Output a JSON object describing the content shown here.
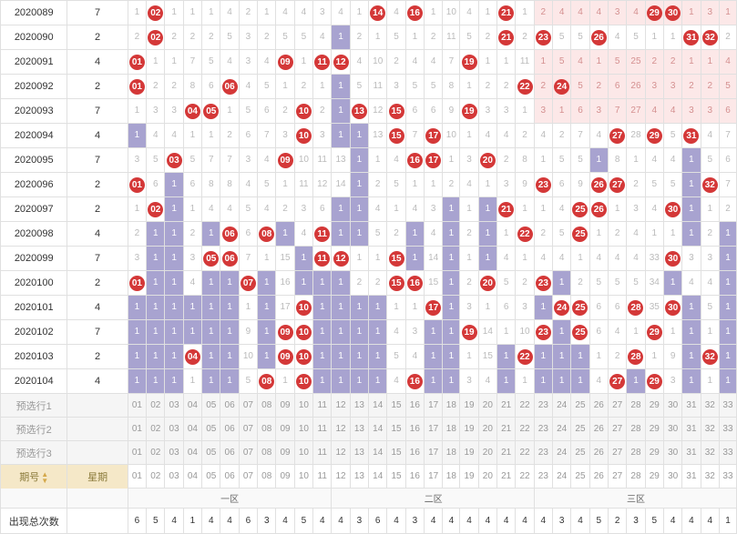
{
  "columns": 33,
  "zones": [
    {
      "label": "一区",
      "start": 1,
      "end": 11
    },
    {
      "label": "二区",
      "start": 12,
      "end": 22
    },
    {
      "label": "三区",
      "start": 23,
      "end": 33
    }
  ],
  "zone3_start": 23,
  "zone3_end": 33,
  "issue_header": "期号",
  "day_header": "星期",
  "count_label": "出现总次数",
  "pred_labels": [
    "预选行1",
    "预选行2",
    "预选行3"
  ],
  "counts": [
    6,
    5,
    4,
    1,
    4,
    4,
    6,
    3,
    4,
    5,
    4,
    4,
    3,
    6,
    4,
    3,
    4,
    4,
    4,
    4,
    4,
    4,
    4,
    3,
    4,
    5,
    2,
    3,
    5,
    4,
    4,
    4,
    1
  ],
  "rows": [
    {
      "issue": "2020089",
      "day": "7",
      "balls": [
        2,
        14,
        16,
        21,
        29,
        30
      ],
      "miss": {
        "1": 1,
        "3": 1,
        "4": 1,
        "5": 1,
        "6": 4,
        "7": 2,
        "8": 1,
        "9": 4,
        "10": 4,
        "11": 3,
        "12": 4,
        "13": 1,
        "15": 4,
        "17": 1,
        "18": 10,
        "19": 4,
        "20": 1,
        "22": 1,
        "23": 2,
        "24": 4,
        "25": 4,
        "26": 4,
        "27": 3,
        "28": 4,
        "31": 1,
        "32": 3,
        "33": 1
      },
      "trail": [],
      "z3": true
    },
    {
      "issue": "2020090",
      "day": "2",
      "balls": [
        2,
        21,
        23,
        26,
        31,
        32
      ],
      "miss": {
        "1": 2,
        "3": 2,
        "4": 2,
        "5": 2,
        "6": 5,
        "7": 3,
        "8": 2,
        "9": 5,
        "10": 5,
        "11": 4,
        "13": 2,
        "14": 1,
        "15": 5,
        "16": 1,
        "17": 2,
        "18": 11,
        "19": 5,
        "20": 2,
        "22": 2,
        "24": 5,
        "25": 5,
        "27": 4,
        "28": 5,
        "29": 1,
        "30": 1,
        "33": 2
      },
      "trail": [
        12
      ],
      "z3": false
    },
    {
      "issue": "2020091",
      "day": "4",
      "balls": [
        1,
        9,
        11,
        12,
        19
      ],
      "miss": {
        "2": 1,
        "3": 1,
        "4": 7,
        "5": 5,
        "6": 4,
        "7": 3,
        "8": 4,
        "10": 1,
        "13": 4,
        "14": 10,
        "15": 2,
        "16": 4,
        "17": 4,
        "18": 7,
        "20": 1,
        "21": 1,
        "22": 11
      },
      "trail": [],
      "z3": true,
      "z3_miss": {
        "23": 1,
        "24": 5,
        "25": 4,
        "26": 1,
        "27": 5,
        "28": 25,
        "29": 2,
        "30": 2,
        "31": 1,
        "32": 1,
        "33": 4
      }
    },
    {
      "issue": "2020092",
      "day": "2",
      "balls": [
        1,
        6,
        22,
        24
      ],
      "miss": {
        "2": 2,
        "3": 2,
        "4": 8,
        "5": 6,
        "7": 4,
        "8": 5,
        "9": 1,
        "10": 2,
        "11": 1,
        "13": 5,
        "14": 11,
        "15": 3,
        "16": 5,
        "17": 5,
        "18": 8,
        "19": 1,
        "20": 2,
        "21": 2
      },
      "trail": [
        12
      ],
      "z3": true,
      "z3_miss": {
        "23": 2,
        "25": 5,
        "26": 2,
        "27": 6,
        "28": 26,
        "29": 3,
        "30": 3,
        "31": 2,
        "32": 2,
        "33": 5
      }
    },
    {
      "issue": "2020093",
      "day": "7",
      "balls": [
        4,
        5,
        10,
        13,
        15,
        19
      ],
      "miss": {
        "1": 1,
        "2": 3,
        "3": 3,
        "6": 1,
        "7": 5,
        "8": 6,
        "9": 2,
        "11": 2,
        "14": 12,
        "16": 6,
        "17": 6,
        "18": 9,
        "20": 3,
        "21": 3,
        "22": 1
      },
      "trail": [
        12
      ],
      "z3": true,
      "z3_miss": {
        "23": 3,
        "24": 1,
        "25": 6,
        "26": 3,
        "27": 7,
        "28": 27,
        "29": 4,
        "30": 4,
        "31": 3,
        "32": 3,
        "33": 6
      }
    },
    {
      "issue": "2020094",
      "day": "4",
      "balls": [
        10,
        15,
        17,
        27,
        29,
        31
      ],
      "miss": {
        "2": 4,
        "3": 4,
        "4": 1,
        "5": 1,
        "6": 2,
        "7": 6,
        "8": 7,
        "9": 3,
        "11": 3,
        "14": 13,
        "16": 7,
        "18": 10,
        "19": 1,
        "20": 4,
        "21": 4,
        "22": 2,
        "23": 4,
        "24": 2,
        "25": 7,
        "26": 4,
        "28": 28,
        "30": 5,
        "32": 4,
        "33": 7
      },
      "trail": [
        1,
        12,
        13
      ],
      "z3": false
    },
    {
      "issue": "2020095",
      "day": "7",
      "balls": [
        3,
        9,
        16,
        17,
        20
      ],
      "miss": {
        "1": 3,
        "2": 5,
        "4": 5,
        "5": 7,
        "6": 7,
        "7": 3,
        "8": 4,
        "10": 10,
        "11": 11,
        "12": 13,
        "14": 1,
        "15": 4,
        "18": 1,
        "19": 3,
        "21": 2,
        "22": 8,
        "23": 1,
        "24": 5,
        "25": 5,
        "27": 8,
        "28": 1,
        "29": 4,
        "30": 4,
        "32": 5,
        "33": 6
      },
      "trail": [
        13,
        26,
        31
      ],
      "z3": false
    },
    {
      "issue": "2020096",
      "day": "2",
      "balls": [
        1,
        23,
        26,
        27,
        32
      ],
      "miss": {
        "2": 6,
        "4": 6,
        "5": 8,
        "6": 8,
        "7": 4,
        "8": 5,
        "9": 1,
        "10": 11,
        "11": 12,
        "12": 14,
        "14": 2,
        "15": 5,
        "16": 1,
        "17": 1,
        "18": 2,
        "19": 4,
        "20": 1,
        "21": 3,
        "22": 9,
        "24": 6,
        "25": 9,
        "28": 2,
        "29": 5,
        "30": 5,
        "33": 7
      },
      "trail": [
        3,
        13,
        31
      ],
      "z3": false
    },
    {
      "issue": "2020097",
      "day": "2",
      "balls": [
        2,
        21,
        25,
        26,
        30
      ],
      "miss": {
        "1": 1,
        "4": 1,
        "5": 4,
        "6": 4,
        "7": 5,
        "8": 4,
        "9": 2,
        "10": 3,
        "11": 6,
        "14": 4,
        "15": 1,
        "16": 4,
        "17": 3,
        "19": 1,
        "22": 1,
        "23": 1,
        "24": 4,
        "27": 1,
        "28": 3,
        "29": 4,
        "32": 1,
        "33": 2
      },
      "trail": [
        3,
        12,
        13,
        18,
        20,
        31
      ],
      "z3": false
    },
    {
      "issue": "2020098",
      "day": "4",
      "balls": [
        6,
        8,
        11,
        22,
        25
      ],
      "miss": {
        "1": 2,
        "4": 2,
        "7": 6,
        "10": 4,
        "14": 5,
        "15": 2,
        "17": 4,
        "19": 2,
        "21": 1,
        "23": 2,
        "24": 5,
        "26": 1,
        "27": 2,
        "28": 4,
        "29": 1,
        "30": 1,
        "32": 2
      },
      "trail": [
        2,
        3,
        5,
        9,
        12,
        13,
        16,
        18,
        20,
        31,
        33
      ],
      "z3": false
    },
    {
      "issue": "2020099",
      "day": "7",
      "balls": [
        5,
        6,
        11,
        12,
        15,
        30
      ],
      "miss": {
        "1": 3,
        "4": 3,
        "7": 7,
        "8": 1,
        "9": 15,
        "13": 1,
        "14": 1,
        "17": 14,
        "19": 1,
        "21": 4,
        "22": 1,
        "23": 4,
        "24": 4,
        "25": 1,
        "26": 4,
        "27": 4,
        "28": 4,
        "29": 33,
        "31": 3,
        "32": 3
      },
      "trail": [
        2,
        3,
        10,
        16,
        18,
        20,
        33
      ],
      "z3": false
    },
    {
      "issue": "2020100",
      "day": "2",
      "balls": [
        1,
        7,
        15,
        16,
        20,
        23
      ],
      "miss": {
        "4": 4,
        "9": 16,
        "13": 2,
        "14": 2,
        "17": 15,
        "19": 2,
        "21": 5,
        "22": 2,
        "25": 2,
        "26": 5,
        "27": 5,
        "28": 5,
        "29": 34,
        "31": 4,
        "32": 4
      },
      "trail": [
        2,
        3,
        5,
        6,
        8,
        10,
        11,
        12,
        18,
        24,
        30,
        33
      ],
      "z3": false
    },
    {
      "issue": "2020101",
      "day": "4",
      "balls": [
        10,
        17,
        24,
        25,
        28,
        30
      ],
      "miss": {
        "7": 1,
        "9": 17,
        "15": 1,
        "16": 1,
        "19": 3,
        "20": 1,
        "21": 6,
        "22": 3,
        "26": 6,
        "27": 6,
        "29": 35,
        "32": 5
      },
      "trail": [
        1,
        2,
        3,
        4,
        5,
        6,
        8,
        11,
        12,
        13,
        14,
        18,
        23,
        31,
        33
      ],
      "z3": false
    },
    {
      "issue": "2020102",
      "day": "7",
      "balls": [
        9,
        10,
        19,
        23,
        25,
        29
      ],
      "miss": {
        "7": 9,
        "15": 4,
        "16": 3,
        "20": 14,
        "21": 1,
        "22": 10,
        "26": 6,
        "27": 4,
        "28": 1,
        "30": 1,
        "32": 1
      },
      "trail": [
        1,
        2,
        3,
        4,
        5,
        6,
        8,
        11,
        12,
        13,
        14,
        17,
        18,
        24,
        31,
        33
      ],
      "z3": false
    },
    {
      "issue": "2020103",
      "day": "2",
      "balls": [
        4,
        9,
        10,
        22,
        28,
        32
      ],
      "miss": {
        "7": 10,
        "15": 5,
        "16": 4,
        "19": 1,
        "20": 15,
        "26": 1,
        "27": 2,
        "29": 1,
        "30": 9
      },
      "trail": [
        1,
        2,
        3,
        5,
        6,
        8,
        11,
        12,
        13,
        14,
        17,
        18,
        21,
        23,
        24,
        25,
        31,
        33
      ],
      "z3": false
    },
    {
      "issue": "2020104",
      "day": "4",
      "balls": [
        8,
        10,
        16,
        27,
        29
      ],
      "miss": {
        "4": 1,
        "7": 5,
        "9": 1,
        "15": 4,
        "19": 3,
        "20": 4,
        "22": 1,
        "26": 4,
        "30": 3,
        "32": 1
      },
      "trail": [
        1,
        2,
        3,
        5,
        6,
        11,
        12,
        13,
        14,
        17,
        18,
        21,
        23,
        24,
        25,
        28,
        31,
        33
      ],
      "z3": false
    }
  ]
}
